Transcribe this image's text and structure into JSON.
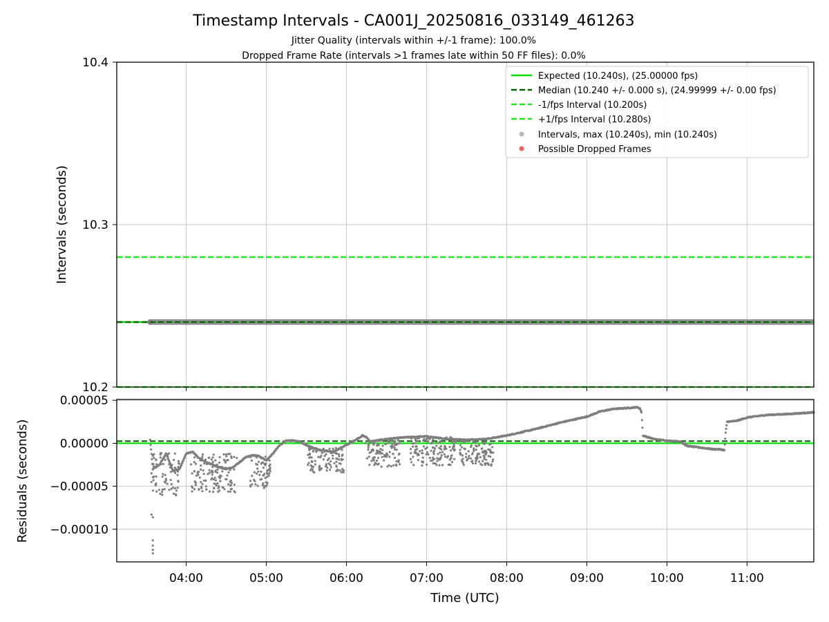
{
  "title": "Timestamp Intervals - CA001J_20250816_033149_461263",
  "subtitle_lines": [
    "Jitter Quality (intervals within +/-1 frame): 100.0%",
    "Dropped Frame Rate (intervals >1 frames late within 50 FF files): 0.0%"
  ],
  "colors": {
    "expected": "#00e000",
    "median": "#006400",
    "fps_bounds": "#22e622",
    "intervals": "#7f7f7f",
    "dropped": "#f06060",
    "grid": "#c8c8c8"
  },
  "chart_data": [
    {
      "type": "scatter",
      "panel": "intervals",
      "ylabel": "Intervals (seconds)",
      "xlim": [
        "03:08",
        "11:50"
      ],
      "ylim": [
        10.2,
        10.4
      ],
      "yticks": [
        "10.2",
        "10.3",
        "10.4"
      ],
      "yticks_values": [
        10.2,
        10.3,
        10.4
      ],
      "grid": true,
      "legend_position": "top-right",
      "legend": [
        "Expected (10.240s), (25.00000 fps)",
        "Median (10.240 +/- 0.000 s), (24.99999 +/- 0.00 fps)",
        "-1/fps Interval (10.200s)",
        "+1/fps Interval (10.280s)",
        "Intervals, max (10.240s), min (10.240s)",
        "Possible Dropped Frames"
      ],
      "reference_lines": [
        {
          "name": "Expected",
          "y": 10.24,
          "style": "solid"
        },
        {
          "name": "Median",
          "y": 10.24,
          "style": "dashed"
        },
        {
          "name": "-1/fps Interval",
          "y": 10.2,
          "style": "dashed"
        },
        {
          "name": "+1/fps Interval",
          "y": 10.28,
          "style": "dashed"
        }
      ],
      "intervals_series": {
        "name": "Intervals",
        "x_start": "03:33",
        "x_end": "11:50",
        "y": 10.24
      }
    },
    {
      "type": "scatter",
      "panel": "residuals",
      "xlabel": "Time (UTC)",
      "ylabel": "Residuals (seconds)",
      "xlim": [
        "03:08",
        "11:50"
      ],
      "xticks": [
        "04:00",
        "05:00",
        "06:00",
        "07:00",
        "08:00",
        "09:00",
        "10:00",
        "11:00"
      ],
      "ylim": [
        -0.000138,
        5.1e-05
      ],
      "yticks": [
        "0.00005",
        "0.00000",
        "−0.00005",
        "−0.00010"
      ],
      "yticks_values": [
        5e-05,
        0,
        -5e-05,
        -0.0001
      ],
      "grid": true,
      "reference_lines": [
        {
          "name": "Expected",
          "y": 0,
          "style": "solid"
        },
        {
          "name": "Median",
          "y": 2.5e-06,
          "style": "dashed"
        }
      ],
      "residual_trend": [
        [
          "03:33",
          4e-06
        ],
        [
          "03:35",
          -3e-05
        ],
        [
          "03:40",
          -2.5e-05
        ],
        [
          "03:45",
          -1.2e-05
        ],
        [
          "03:50",
          -3.2e-05
        ],
        [
          "03:55",
          -3e-05
        ],
        [
          "04:00",
          -1.2e-05
        ],
        [
          "04:05",
          -1e-05
        ],
        [
          "04:10",
          -1.8e-05
        ],
        [
          "04:15",
          -2.2e-05
        ],
        [
          "04:20",
          -2.5e-05
        ],
        [
          "04:25",
          -2.8e-05
        ],
        [
          "04:30",
          -3e-05
        ],
        [
          "04:35",
          -2.8e-05
        ],
        [
          "04:40",
          -2.2e-05
        ],
        [
          "04:45",
          -1.6e-05
        ],
        [
          "04:50",
          -1.4e-05
        ],
        [
          "04:55",
          -1.5e-05
        ],
        [
          "05:00",
          -2e-05
        ],
        [
          "05:05",
          -1.2e-05
        ],
        [
          "05:10",
          -2e-06
        ],
        [
          "05:15",
          3e-06
        ],
        [
          "05:20",
          3e-06
        ],
        [
          "05:25",
          2e-06
        ],
        [
          "05:30",
          -2e-06
        ],
        [
          "05:40",
          -8e-06
        ],
        [
          "05:50",
          -1e-05
        ],
        [
          "06:00",
          -2e-06
        ],
        [
          "06:08",
          5e-06
        ],
        [
          "06:12",
          9e-06
        ],
        [
          "06:15",
          7e-06
        ],
        [
          "06:18",
          2e-06
        ],
        [
          "06:30",
          5e-06
        ],
        [
          "06:45",
          7e-06
        ],
        [
          "07:00",
          8e-06
        ],
        [
          "07:15",
          5e-06
        ],
        [
          "07:30",
          4e-06
        ],
        [
          "07:45",
          5e-06
        ],
        [
          "08:00",
          9e-06
        ],
        [
          "08:20",
          1.6e-05
        ],
        [
          "08:40",
          2.4e-05
        ],
        [
          "09:00",
          3.1e-05
        ],
        [
          "09:10",
          3.7e-05
        ],
        [
          "09:20",
          4e-05
        ],
        [
          "09:30",
          4.1e-05
        ],
        [
          "09:38",
          4.2e-05
        ],
        [
          "09:40",
          4e-05
        ],
        [
          "09:41",
          3.6e-05
        ],
        [
          "09:42",
          9e-06
        ],
        [
          "09:50",
          5e-06
        ],
        [
          "10:00",
          3e-06
        ],
        [
          "10:10",
          2e-06
        ],
        [
          "10:15",
          -3e-06
        ],
        [
          "10:25",
          -5e-06
        ],
        [
          "10:35",
          -7e-06
        ],
        [
          "10:40",
          -7e-06
        ],
        [
          "10:43",
          -8e-06
        ],
        [
          "10:44",
          1.2e-05
        ],
        [
          "10:45",
          2.5e-05
        ],
        [
          "10:52",
          2.6e-05
        ],
        [
          "11:00",
          3e-05
        ],
        [
          "11:15",
          3.3e-05
        ],
        [
          "11:30",
          3.4e-05
        ],
        [
          "11:50",
          3.6e-05
        ]
      ],
      "residual_scatter_regions": [
        {
          "x_start": "03:35",
          "x_end": "03:55",
          "y_min": -6.2e-05,
          "y_max": -1e-05
        },
        {
          "x_start": "04:03",
          "x_end": "04:38",
          "y_min": -5.7e-05,
          "y_max": -1.2e-05
        },
        {
          "x_start": "04:48",
          "x_end": "05:03",
          "y_min": -5.2e-05,
          "y_max": -1.5e-05
        },
        {
          "x_start": "05:31",
          "x_end": "05:58",
          "y_min": -3.4e-05,
          "y_max": -5e-06
        },
        {
          "x_start": "06:14",
          "x_end": "06:40",
          "y_min": -2.8e-05,
          "y_max": 4e-06
        },
        {
          "x_start": "06:48",
          "x_end": "07:22",
          "y_min": -2.6e-05,
          "y_max": 7e-06
        },
        {
          "x_start": "07:25",
          "x_end": "07:50",
          "y_min": -2.6e-05,
          "y_max": 3e-06
        }
      ],
      "residual_outliers": [
        [
          "03:34",
          -8.3e-05
        ],
        [
          "03:35",
          -8.6e-05
        ],
        [
          "03:35",
          -0.000113
        ],
        [
          "03:35",
          -0.000119
        ],
        [
          "03:35",
          -0.000124
        ],
        [
          "03:35",
          -0.000128
        ],
        [
          "03:34",
          -4.5e-05
        ],
        [
          "03:34",
          -3.5e-05
        ]
      ]
    }
  ]
}
